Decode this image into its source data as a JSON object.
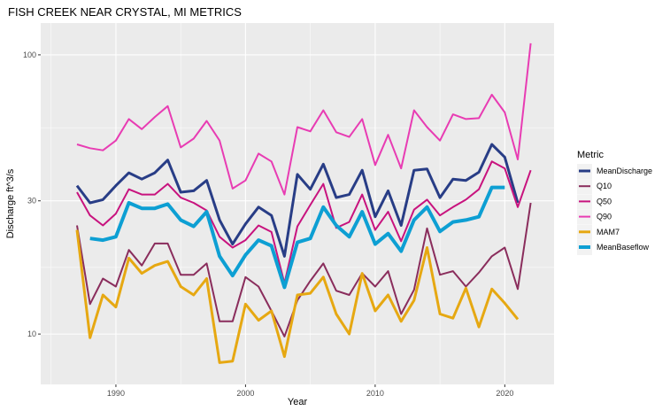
{
  "chart_data": {
    "type": "line",
    "title": "FISH CREEK NEAR CRYSTAL, MI  METRICS",
    "xlabel": "Year",
    "ylabel": "Discharge ft^3/s",
    "y_scale": "log10",
    "xlim": [
      1984.2,
      2023.8
    ],
    "ylim": [
      6.6,
      130
    ],
    "x_ticks": [
      1990,
      2000,
      2010,
      2020
    ],
    "x_tick_labels": [
      "1990",
      "2000",
      "2010",
      "2020"
    ],
    "y_ticks": [
      10,
      30,
      100
    ],
    "y_tick_labels": [
      "10",
      "30",
      "100"
    ],
    "grid": true,
    "panel_background": "#ebebeb",
    "legend": {
      "title": "Metric",
      "position": "right"
    },
    "series": [
      {
        "name": "MeanDischarge",
        "color": "#283d86",
        "width": 3,
        "x": [
          1987,
          1988,
          1989,
          1990,
          1991,
          1992,
          1993,
          1994,
          1995,
          1996,
          1997,
          1998,
          1999,
          2000,
          2001,
          2002,
          2003,
          2004,
          2005,
          2006,
          2007,
          2008,
          2009,
          2010,
          2011,
          2012,
          2013,
          2014,
          2015,
          2016,
          2017,
          2018,
          2019,
          2020,
          2021
        ],
        "y": [
          34,
          29.5,
          30.3,
          34,
          37.8,
          35.9,
          37.8,
          42,
          32.2,
          32.6,
          35.5,
          25.6,
          21,
          24.8,
          28.5,
          26.6,
          19,
          37.3,
          33,
          40.6,
          30.8,
          31.6,
          38.6,
          26.3,
          32.6,
          24.5,
          38.6,
          39,
          30.8,
          35.9,
          35.5,
          38,
          47.8,
          43,
          29.5
        ]
      },
      {
        "name": "Q10",
        "color": "#8a2d5c",
        "width": 2,
        "x": [
          1987,
          1988,
          1989,
          1990,
          1991,
          1992,
          1993,
          1994,
          1995,
          1996,
          1997,
          1998,
          1999,
          2000,
          2001,
          2002,
          2003,
          2004,
          2005,
          2006,
          2007,
          2008,
          2009,
          2010,
          2011,
          2012,
          2013,
          2014,
          2015,
          2016,
          2017,
          2018,
          2019,
          2020,
          2021,
          2022
        ],
        "y": [
          24.5,
          12.8,
          15.8,
          14.8,
          20,
          17.6,
          21.1,
          21.1,
          16.3,
          16.3,
          17.9,
          11.1,
          11.1,
          16,
          14.8,
          12.1,
          9.8,
          13.2,
          15.5,
          17.9,
          14.3,
          13.8,
          16.5,
          14.8,
          16.8,
          11.8,
          14.4,
          23.9,
          16.3,
          16.8,
          14.8,
          16.6,
          19,
          20.4,
          14.5,
          29.5
        ]
      },
      {
        "name": "Q50",
        "color": "#c8137e",
        "width": 2,
        "x": [
          1987,
          1988,
          1989,
          1990,
          1991,
          1992,
          1993,
          1994,
          1995,
          1996,
          1997,
          1998,
          1999,
          2000,
          2001,
          2002,
          2003,
          2004,
          2005,
          2006,
          2007,
          2008,
          2009,
          2010,
          2011,
          2012,
          2013,
          2014,
          2015,
          2016,
          2017,
          2018,
          2019,
          2020,
          2021,
          2022
        ],
        "y": [
          32.2,
          26.6,
          24.5,
          27,
          33,
          31.6,
          31.6,
          34.5,
          30.8,
          29.5,
          27.7,
          22.3,
          20.4,
          21.7,
          24.5,
          23.2,
          15.2,
          24.3,
          29,
          34.5,
          24,
          25.2,
          31.6,
          23.6,
          27.4,
          21.5,
          27.9,
          30.3,
          26.6,
          28.5,
          30.3,
          33,
          41.5,
          39.2,
          28.5,
          38.6
        ]
      },
      {
        "name": "Q90",
        "color": "#e83cb3",
        "width": 2,
        "x": [
          1987,
          1988,
          1989,
          1990,
          1991,
          1992,
          1993,
          1994,
          1995,
          1996,
          1997,
          1998,
          1999,
          2000,
          2001,
          2002,
          2003,
          2004,
          2005,
          2006,
          2007,
          2008,
          2009,
          2010,
          2011,
          2012,
          2013,
          2014,
          2015,
          2016,
          2017,
          2018,
          2019,
          2020,
          2021,
          2022
        ],
        "y": [
          47.8,
          46.3,
          45.5,
          49.3,
          58.9,
          54.2,
          59.9,
          65.5,
          46.6,
          50.1,
          58,
          49.3,
          33.2,
          35.5,
          44.3,
          41.5,
          31.6,
          55.1,
          53.2,
          63.3,
          52.8,
          50.8,
          58.9,
          40.3,
          51.7,
          39.2,
          63.3,
          55.1,
          49.3,
          61.2,
          58.9,
          59.3,
          72,
          62.2,
          42.2,
          110
        ]
      },
      {
        "name": "MAM7",
        "color": "#e6a812",
        "width": 3,
        "x": [
          1987,
          1988,
          1989,
          1990,
          1991,
          1992,
          1993,
          1994,
          1995,
          1996,
          1997,
          1998,
          1999,
          2000,
          2001,
          2002,
          2003,
          2004,
          2005,
          2006,
          2007,
          2008,
          2009,
          2010,
          2011,
          2012,
          2013,
          2014,
          2015,
          2016,
          2017,
          2018,
          2019,
          2020,
          2021
        ],
        "y": [
          23.6,
          9.7,
          13.8,
          12.5,
          18.7,
          16.5,
          17.6,
          18.2,
          14.8,
          13.8,
          15.8,
          7.9,
          8,
          12.8,
          11.2,
          12.1,
          8.3,
          13.8,
          14,
          16,
          11.8,
          10,
          16.5,
          12.1,
          13.8,
          11.1,
          13.2,
          20.4,
          11.8,
          11.4,
          14.6,
          10.6,
          14.5,
          12.9,
          11.3
        ]
      },
      {
        "name": "MeanBaseflow",
        "color": "#0d9fd3",
        "width": 4,
        "x": [
          1988,
          1989,
          1990,
          1991,
          1992,
          1993,
          1994,
          1995,
          1996,
          1997,
          1998,
          1999,
          2000,
          2001,
          2002,
          2003,
          2004,
          2005,
          2006,
          2007,
          2008,
          2009,
          2010,
          2011,
          2012,
          2013,
          2014,
          2015,
          2016,
          2017,
          2018,
          2019,
          2020
        ],
        "y": [
          22,
          21.7,
          22.3,
          29.5,
          28.2,
          28.2,
          29.2,
          25.6,
          24.3,
          27.4,
          19,
          16.2,
          19.2,
          21.7,
          20.7,
          14.7,
          21.3,
          22,
          28.5,
          24.5,
          22.3,
          27.4,
          21,
          22.9,
          19.8,
          25.6,
          28.5,
          23.3,
          25.2,
          25.6,
          26.3,
          33.5,
          33.5
        ]
      }
    ]
  }
}
